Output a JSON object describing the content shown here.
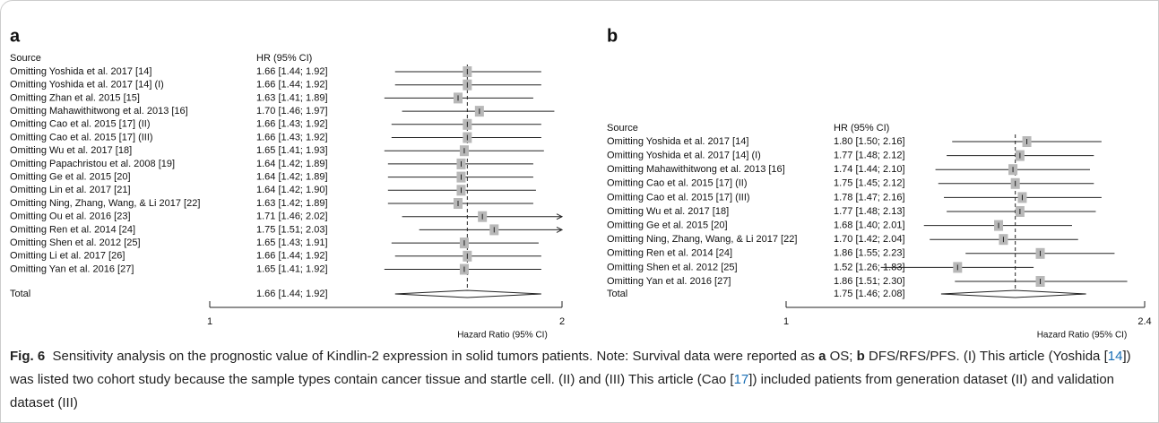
{
  "chart_data": [
    {
      "type": "forest",
      "panel_label": "a",
      "source_header": "Source",
      "ci_header": "HR (95% CI)",
      "categories": [
        "Omitting Yoshida et al. 2017 [14]",
        "Omitting Yoshida et al. 2017 [14] (I)",
        "Omitting Zhan et al. 2015 [15]",
        "Omitting Mahawithitwong et al. 2013 [16]",
        "Omitting Cao et al. 2015 [17] (II)",
        "Omitting Cao et al. 2015 [17] (III)",
        "Omitting Wu et al. 2017 [18]",
        "Omitting Papachristou et al. 2008 [19]",
        "Omitting Ge et al. 2015 [20]",
        "Omitting Lin et al. 2017 [21]",
        "Omitting Ning, Zhang, Wang, & Li 2017 [22]",
        "Omitting Ou et al. 2016 [23]",
        "Omitting Ren et al. 2014 [24]",
        "Omitting Shen et al. 2012 [25]",
        "Omitting Li et al. 2017 [26]",
        "Omitting Yan et al. 2016 [27]"
      ],
      "values": [
        1.66,
        1.66,
        1.63,
        1.7,
        1.66,
        1.66,
        1.65,
        1.64,
        1.64,
        1.64,
        1.63,
        1.71,
        1.75,
        1.65,
        1.66,
        1.65
      ],
      "lower": [
        1.44,
        1.44,
        1.41,
        1.46,
        1.43,
        1.43,
        1.41,
        1.42,
        1.42,
        1.42,
        1.42,
        1.46,
        1.51,
        1.43,
        1.44,
        1.41
      ],
      "upper": [
        1.92,
        1.92,
        1.89,
        1.97,
        1.92,
        1.92,
        1.93,
        1.89,
        1.89,
        1.9,
        1.89,
        2.02,
        2.03,
        1.91,
        1.92,
        1.92
      ],
      "value_labels": [
        "1.66 [1.44; 1.92]",
        "1.66 [1.44; 1.92]",
        "1.63 [1.41; 1.89]",
        "1.70 [1.46; 1.97]",
        "1.66 [1.43; 1.92]",
        "1.66 [1.43; 1.92]",
        "1.65 [1.41; 1.93]",
        "1.64 [1.42; 1.89]",
        "1.64 [1.42; 1.89]",
        "1.64 [1.42; 1.90]",
        "1.63 [1.42; 1.89]",
        "1.71 [1.46; 2.02]",
        "1.75 [1.51; 2.03]",
        "1.65 [1.43; 1.91]",
        "1.66 [1.44; 1.92]",
        "1.65 [1.41; 1.92]"
      ],
      "total_name": "Total",
      "total_value": 1.66,
      "total_lower": 1.44,
      "total_upper": 1.92,
      "total_label": "1.66 [1.44; 1.92]",
      "xlim": [
        1,
        2
      ],
      "xticks": [
        1,
        2
      ],
      "log_scale": true,
      "xlabel": "Hazard Ratio (95% CI)",
      "color": "#b8b8b8"
    },
    {
      "type": "forest",
      "panel_label": "b",
      "source_header": "Source",
      "ci_header": "HR (95% CI)",
      "categories": [
        "Omitting Yoshida et al. 2017 [14]",
        "Omitting Yoshida et al. 2017 [14] (I)",
        "Omitting Mahawithitwong et al. 2013 [16]",
        "Omitting Cao et al. 2015 [17] (II)",
        "Omitting Cao et al. 2015 [17] (III)",
        "Omitting Wu et al. 2017 [18]",
        "Omitting Ge et al. 2015 [20]",
        "Omitting Ning, Zhang, Wang, & Li 2017 [22]",
        "Omitting Ren et al. 2014 [24]",
        "Omitting Shen et al. 2012 [25]",
        "Omitting Yan et al. 2016 [27]"
      ],
      "values": [
        1.8,
        1.77,
        1.74,
        1.75,
        1.78,
        1.77,
        1.68,
        1.7,
        1.86,
        1.52,
        1.86
      ],
      "lower": [
        1.5,
        1.48,
        1.44,
        1.45,
        1.47,
        1.48,
        1.4,
        1.42,
        1.55,
        1.26,
        1.51
      ],
      "upper": [
        2.16,
        2.12,
        2.1,
        2.12,
        2.16,
        2.13,
        2.01,
        2.04,
        2.23,
        1.83,
        2.3
      ],
      "value_labels": [
        "1.80 [1.50; 2.16]",
        "1.77 [1.48; 2.12]",
        "1.74 [1.44; 2.10]",
        "1.75 [1.45; 2.12]",
        "1.78 [1.47; 2.16]",
        "1.77 [1.48; 2.13]",
        "1.68 [1.40; 2.01]",
        "1.70 [1.42; 2.04]",
        "1.86 [1.55; 2.23]",
        "1.52 [1.26; 1.83]",
        "1.86 [1.51; 2.30]"
      ],
      "total_name": "Total",
      "total_value": 1.75,
      "total_lower": 1.46,
      "total_upper": 2.08,
      "total_label": "1.75 [1.46; 2.08]",
      "xlim": [
        1,
        2.4
      ],
      "xticks": [
        1,
        2.4
      ],
      "log_scale": true,
      "xlabel": "Hazard Ratio (95% CI)",
      "color": "#b8b8b8"
    }
  ],
  "caption": {
    "label": "Fig. 6",
    "segments": [
      "Sensitivity analysis on the prognostic value of Kindlin-2 expression in solid tumors patients. Note: Survival data were reported as ",
      "a",
      " OS; ",
      "b",
      " DFS/RFS/PFS. (I) This article (Yoshida [",
      "14",
      "]) was listed two cohort study because the sample types contain cancer tissue and startle cell. (II) and (III) This article (Cao [",
      "17",
      "]) included patients from generation dataset (II) and validation dataset (III)"
    ]
  }
}
